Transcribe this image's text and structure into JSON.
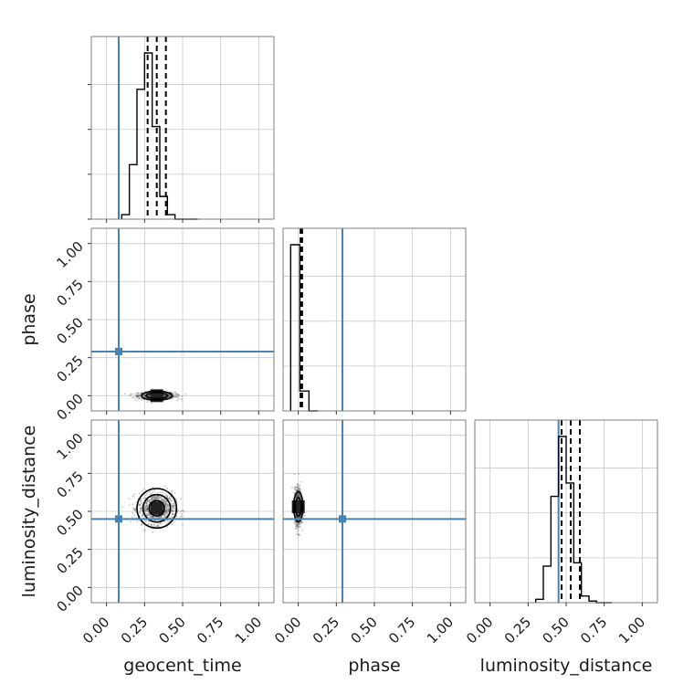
{
  "chart_data": {
    "type": "corner",
    "parameters": [
      "geocent_time",
      "phase",
      "luminosity_distance"
    ],
    "axis_range": [
      -0.1,
      1.1
    ],
    "ticks": [
      0.0,
      0.25,
      0.5,
      0.75,
      1.0
    ],
    "tick_labels": [
      "0.00",
      "0.25",
      "0.50",
      "0.75",
      "1.00"
    ],
    "grid": true,
    "colors": {
      "truth": "#4682b4",
      "hist": "#000000",
      "points": "#555555"
    },
    "truths": {
      "geocent_time": 0.08,
      "phase": 0.29,
      "luminosity_distance": 0.45
    },
    "marginals": [
      {
        "param": "geocent_time",
        "bin_edges": [
          0.1,
          0.15,
          0.2,
          0.25,
          0.3,
          0.35,
          0.4,
          0.45,
          0.5,
          0.55,
          0.6
        ],
        "counts": [
          5,
          60,
          143,
          183,
          102,
          25,
          5,
          0,
          0,
          0
        ],
        "quantiles": [
          0.27,
          0.33,
          0.39
        ]
      },
      {
        "param": "phase",
        "bin_edges": [
          -0.05,
          0.01,
          0.07,
          0.13
        ],
        "counts": [
          100,
          12,
          0
        ],
        "quantiles": [
          0.015,
          0.02,
          0.025
        ]
      },
      {
        "param": "luminosity_distance",
        "bin_edges": [
          0.3,
          0.35,
          0.4,
          0.45,
          0.5,
          0.55,
          0.6,
          0.65,
          0.7,
          0.75,
          0.8
        ],
        "counts": [
          2,
          22,
          64,
          100,
          72,
          24,
          4,
          1,
          0,
          0
        ],
        "quantiles": [
          0.47,
          0.53,
          0.59
        ]
      }
    ],
    "scatter": [
      {
        "x": "geocent_time",
        "y": "phase",
        "center": [
          0.33,
          0.0
        ],
        "spread": [
          0.06,
          0.012
        ],
        "contours": [
          [
            0.07,
            0.02
          ],
          [
            0.1,
            0.03
          ]
        ]
      },
      {
        "x": "geocent_time",
        "y": "luminosity_distance",
        "center": [
          0.33,
          0.52
        ],
        "spread": [
          0.06,
          0.05
        ],
        "contours": [
          [
            0.05,
            0.05
          ],
          [
            0.09,
            0.09
          ],
          [
            0.13,
            0.13
          ]
        ]
      },
      {
        "x": "phase",
        "y": "luminosity_distance",
        "center": [
          0.0,
          0.53
        ],
        "spread": [
          0.012,
          0.06
        ],
        "contours": [
          [
            0.02,
            0.06
          ],
          [
            0.03,
            0.1
          ]
        ]
      }
    ]
  }
}
